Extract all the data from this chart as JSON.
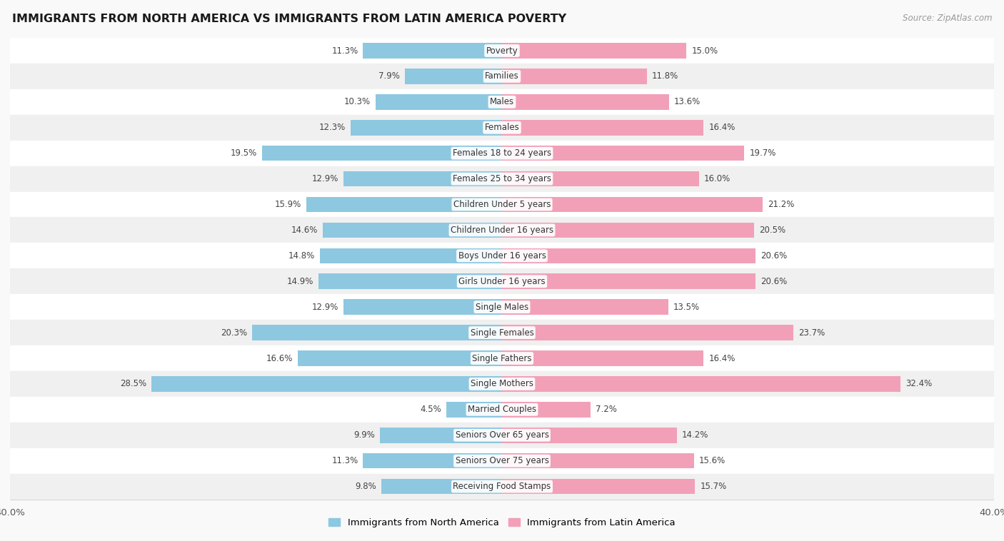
{
  "title": "IMMIGRANTS FROM NORTH AMERICA VS IMMIGRANTS FROM LATIN AMERICA POVERTY",
  "source": "Source: ZipAtlas.com",
  "categories": [
    "Poverty",
    "Families",
    "Males",
    "Females",
    "Females 18 to 24 years",
    "Females 25 to 34 years",
    "Children Under 5 years",
    "Children Under 16 years",
    "Boys Under 16 years",
    "Girls Under 16 years",
    "Single Males",
    "Single Females",
    "Single Fathers",
    "Single Mothers",
    "Married Couples",
    "Seniors Over 65 years",
    "Seniors Over 75 years",
    "Receiving Food Stamps"
  ],
  "north_america": [
    11.3,
    7.9,
    10.3,
    12.3,
    19.5,
    12.9,
    15.9,
    14.6,
    14.8,
    14.9,
    12.9,
    20.3,
    16.6,
    28.5,
    4.5,
    9.9,
    11.3,
    9.8
  ],
  "latin_america": [
    15.0,
    11.8,
    13.6,
    16.4,
    19.7,
    16.0,
    21.2,
    20.5,
    20.6,
    20.6,
    13.5,
    23.7,
    16.4,
    32.4,
    7.2,
    14.2,
    15.6,
    15.7
  ],
  "color_north": "#8DC8E0",
  "color_latin": "#F2A0B8",
  "xlim": 40.0,
  "row_color_even": "#f0f0f0",
  "row_color_odd": "#ffffff",
  "legend_labels": [
    "Immigrants from North America",
    "Immigrants from Latin America"
  ]
}
